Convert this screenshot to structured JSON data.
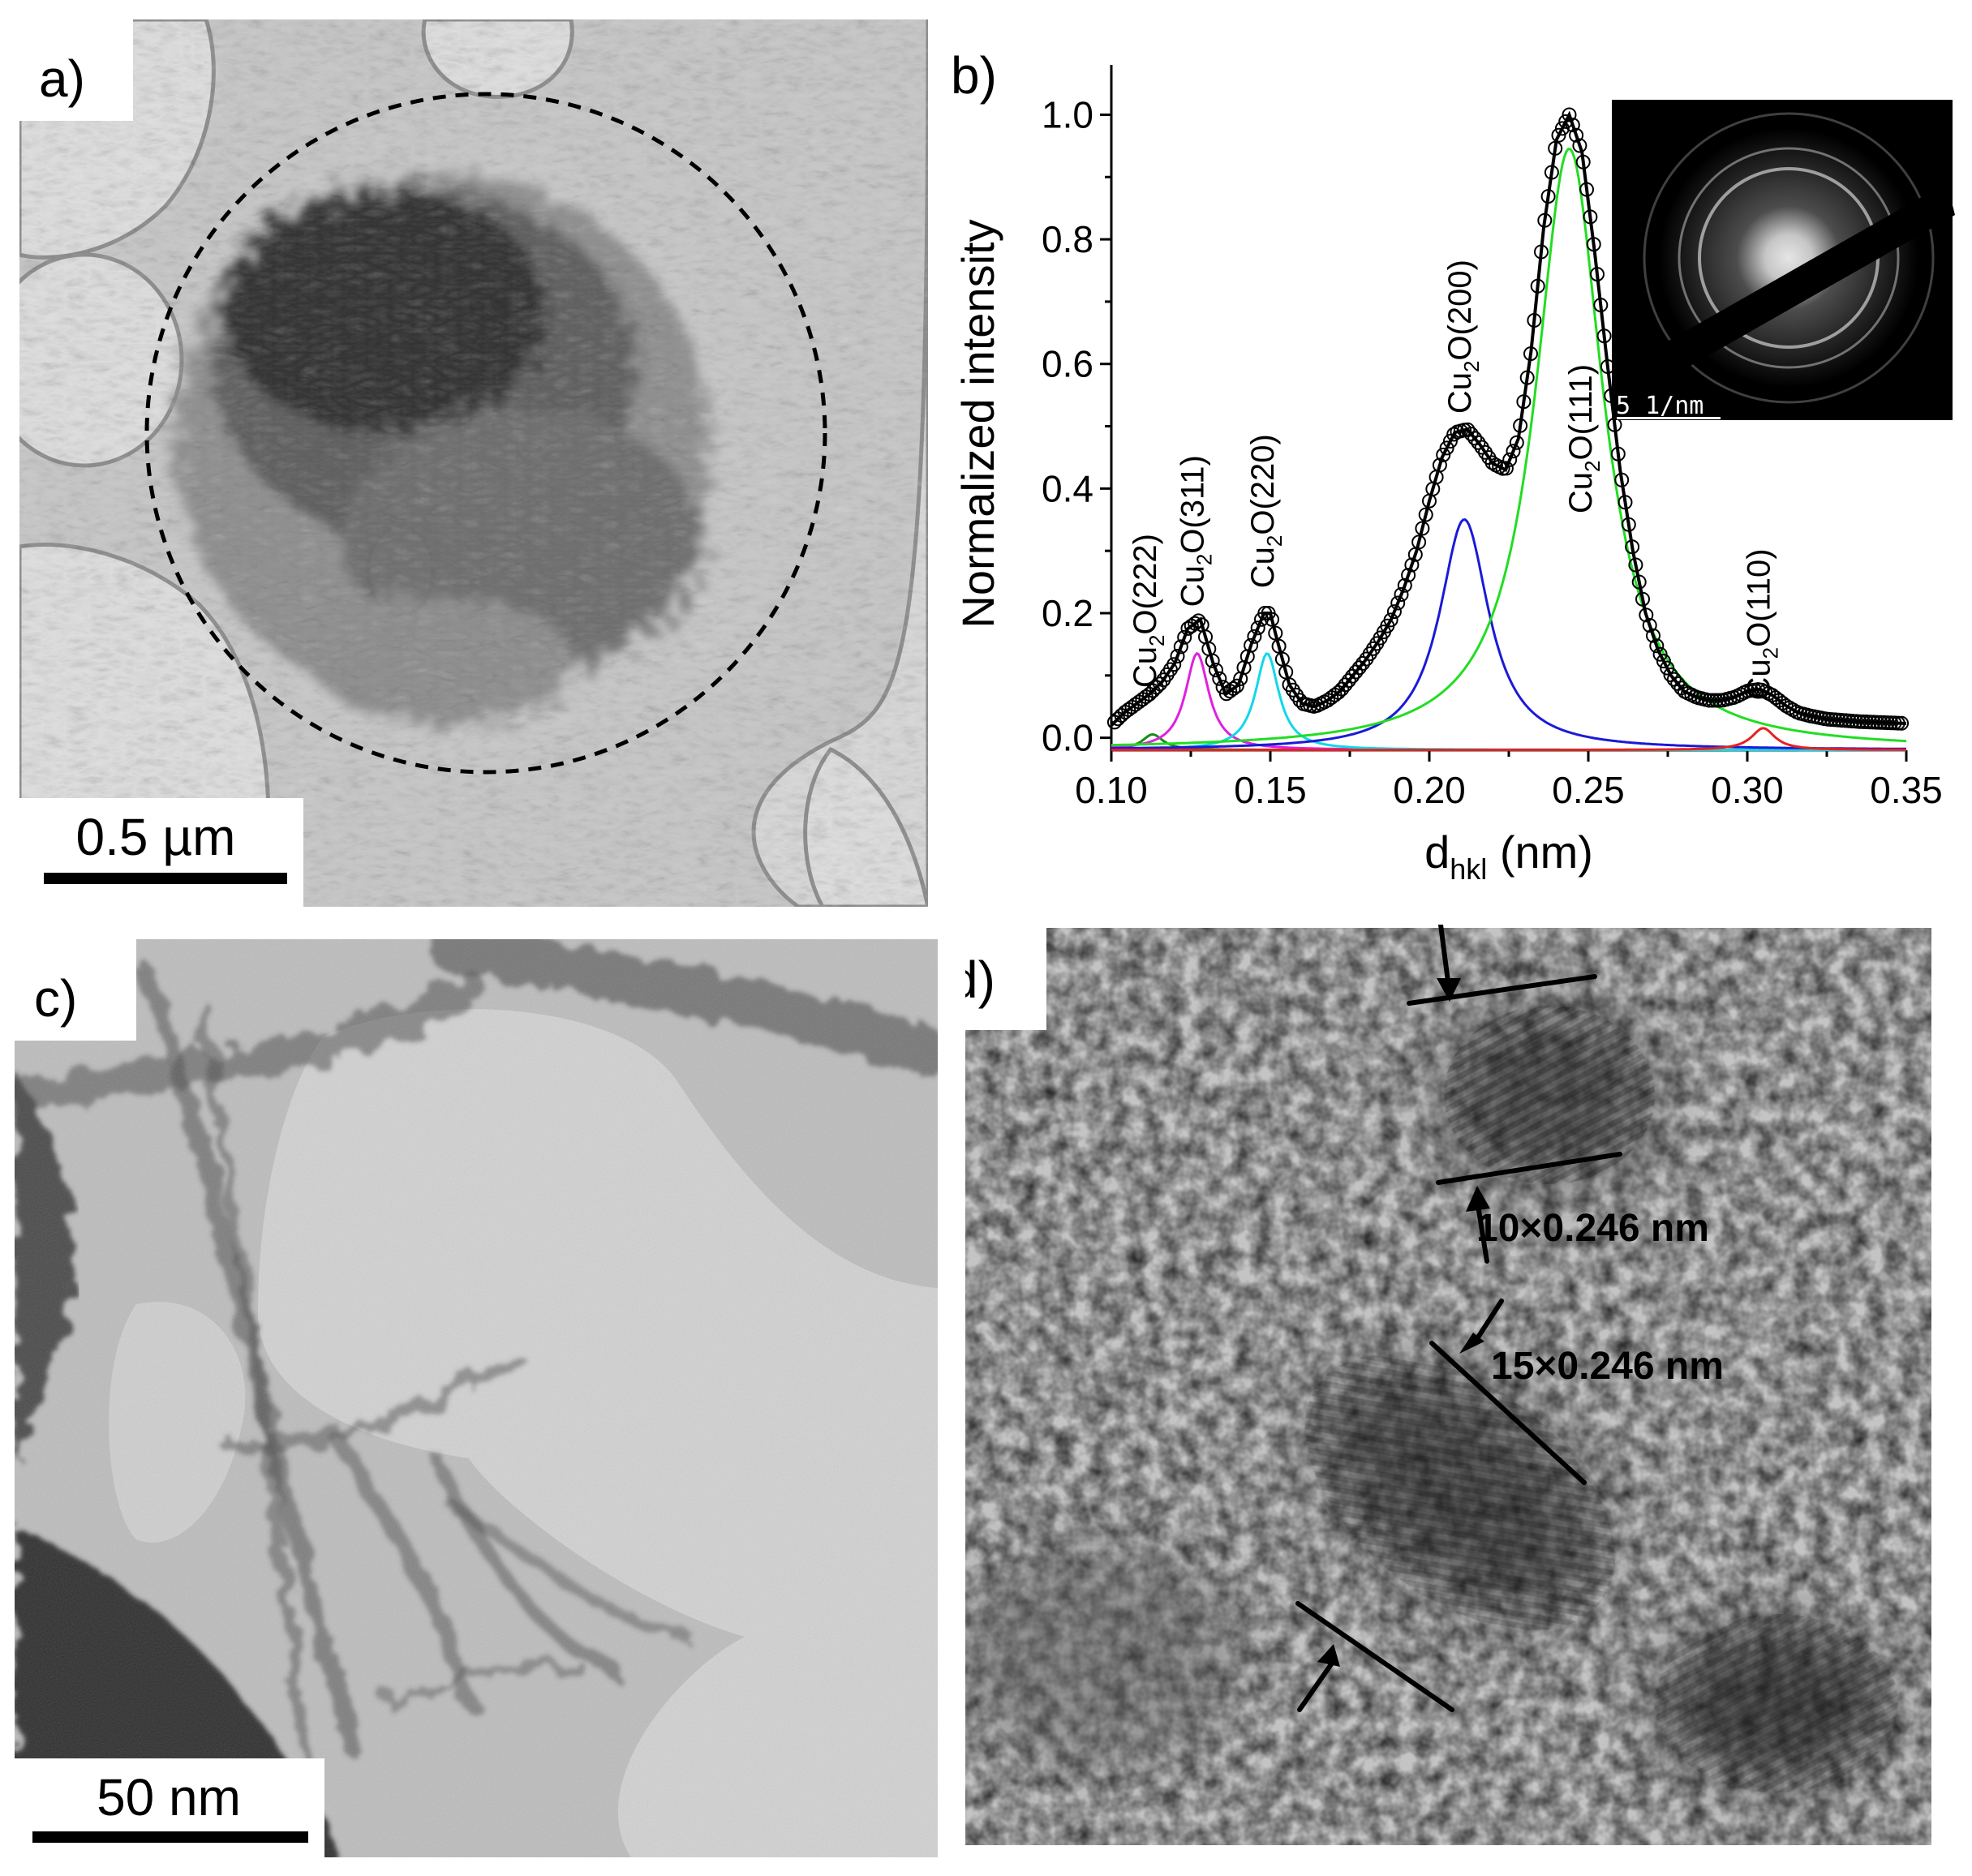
{
  "panels": {
    "a": {
      "label": "a)",
      "scale_bar": "0.5 µm"
    },
    "b": {
      "label": "b)",
      "inset_scale": "5 1/nm"
    },
    "c": {
      "label": "c)",
      "scale_bar": "50 nm"
    },
    "d": {
      "label": "d)",
      "annotation_1": "10×0.246 nm",
      "annotation_2": "15×0.246 nm"
    }
  },
  "colors": {
    "magenta": "#e020e0",
    "cyan": "#10d8e8",
    "blue": "#1a1ad8",
    "green": "#22dd22",
    "dark_green": "#1a8a1a",
    "red": "#e82020",
    "black": "#000000"
  },
  "chart_data": {
    "type": "line",
    "xlabel": "d",
    "xlabel_sub": "hkl",
    "xlabel_unit": " (nm)",
    "ylabel": "Normalized intensity",
    "xlim": [
      0.1,
      0.35
    ],
    "ylim": [
      -0.02,
      1.08
    ],
    "x_ticks": [
      "0.10",
      "0.15",
      "0.20",
      "0.25",
      "0.30",
      "0.35"
    ],
    "y_ticks": [
      "0.0",
      "0.2",
      "0.4",
      "0.6",
      "0.8",
      "1.0"
    ],
    "peaks": [
      {
        "name": "Cu2O(222)",
        "center": 0.113,
        "height": 0.025,
        "width": 0.004,
        "color": "#1a8a1a",
        "label_pre": "Cu",
        "label_sub": "2",
        "label_post": "O(222)"
      },
      {
        "name": "Cu2O(311)",
        "center": 0.127,
        "height": 0.155,
        "width": 0.0045,
        "color": "#e020e0",
        "label_pre": "Cu",
        "label_sub": "2",
        "label_post": "O(311)"
      },
      {
        "name": "Cu2O(220)",
        "center": 0.149,
        "height": 0.155,
        "width": 0.0045,
        "color": "#10d8e8",
        "label_pre": "Cu",
        "label_sub": "2",
        "label_post": "O(220)"
      },
      {
        "name": "Cu2O(200)",
        "center": 0.211,
        "height": 0.37,
        "width": 0.0095,
        "color": "#1a1ad8",
        "label_pre": "Cu",
        "label_sub": "2",
        "label_post": "O(200)"
      },
      {
        "name": "Cu2O(111)",
        "center": 0.244,
        "height": 0.965,
        "width": 0.013,
        "color": "#22dd22",
        "label_pre": "Cu",
        "label_sub": "2",
        "label_post": "O(111)"
      },
      {
        "name": "Cu2O(110)",
        "center": 0.305,
        "height": 0.035,
        "width": 0.0045,
        "color": "#e82020",
        "label_pre": "Cu",
        "label_sub": "2",
        "label_post": "O(110)"
      }
    ],
    "envelope": {
      "x": [
        0.1,
        0.104,
        0.108,
        0.112,
        0.116,
        0.12,
        0.124,
        0.128,
        0.132,
        0.136,
        0.14,
        0.144,
        0.148,
        0.15,
        0.152,
        0.156,
        0.16,
        0.164,
        0.168,
        0.172,
        0.176,
        0.18,
        0.184,
        0.188,
        0.192,
        0.196,
        0.2,
        0.204,
        0.208,
        0.212,
        0.216,
        0.22,
        0.224,
        0.228,
        0.232,
        0.236,
        0.24,
        0.244,
        0.248,
        0.252,
        0.256,
        0.26,
        0.264,
        0.268,
        0.272,
        0.276,
        0.28,
        0.284,
        0.288,
        0.292,
        0.296,
        0.3,
        0.304,
        0.308,
        0.312,
        0.316,
        0.32,
        0.325,
        0.33,
        0.335,
        0.34,
        0.345,
        0.35
      ],
      "y": [
        0.02,
        0.04,
        0.055,
        0.07,
        0.09,
        0.12,
        0.175,
        0.19,
        0.12,
        0.07,
        0.085,
        0.15,
        0.2,
        0.2,
        0.16,
        0.085,
        0.055,
        0.05,
        0.06,
        0.075,
        0.1,
        0.125,
        0.155,
        0.19,
        0.24,
        0.3,
        0.38,
        0.45,
        0.49,
        0.495,
        0.47,
        0.44,
        0.43,
        0.48,
        0.62,
        0.82,
        0.96,
        1.0,
        0.94,
        0.78,
        0.6,
        0.43,
        0.3,
        0.2,
        0.14,
        0.1,
        0.075,
        0.065,
        0.06,
        0.06,
        0.065,
        0.075,
        0.078,
        0.068,
        0.052,
        0.04,
        0.035,
        0.03,
        0.028,
        0.026,
        0.025,
        0.024,
        0.023
      ]
    }
  }
}
